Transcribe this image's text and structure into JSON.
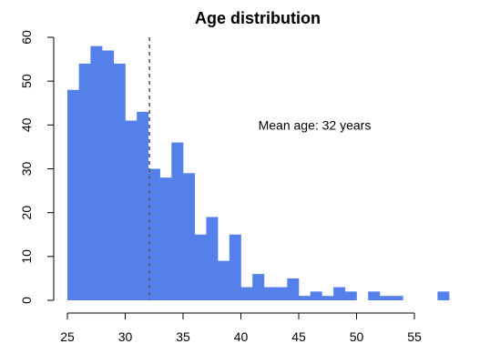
{
  "chart_data": {
    "type": "bar",
    "title": "Age distribution",
    "xlabel": "",
    "ylabel": "",
    "bin_width": 1,
    "bins_start": [
      25,
      26,
      27,
      28,
      29,
      30,
      31,
      32,
      33,
      34,
      35,
      36,
      37,
      38,
      39,
      40,
      41,
      42,
      43,
      44,
      45,
      46,
      47,
      48,
      49,
      50,
      51,
      52,
      53,
      54,
      55,
      56,
      57
    ],
    "values": [
      48,
      54,
      58,
      57,
      54,
      41,
      43,
      30,
      28,
      36,
      29,
      15,
      19,
      9,
      15,
      3,
      6,
      3,
      3,
      5,
      1,
      2,
      1,
      3,
      2,
      0,
      2,
      1,
      1,
      0,
      0,
      0,
      2
    ],
    "bar_color": "#5680e9",
    "xlim": [
      25,
      58
    ],
    "ylim": [
      0,
      60
    ],
    "x_ticks": [
      25,
      30,
      35,
      40,
      45,
      50,
      55
    ],
    "y_ticks": [
      0,
      10,
      20,
      30,
      40,
      50,
      60
    ],
    "grid": false,
    "mean_line": {
      "x": 32.1,
      "style": "dashed",
      "color": "#555555"
    },
    "annotation": {
      "text": "Mean age: 32 years",
      "x": 41.5,
      "y": 40
    }
  }
}
